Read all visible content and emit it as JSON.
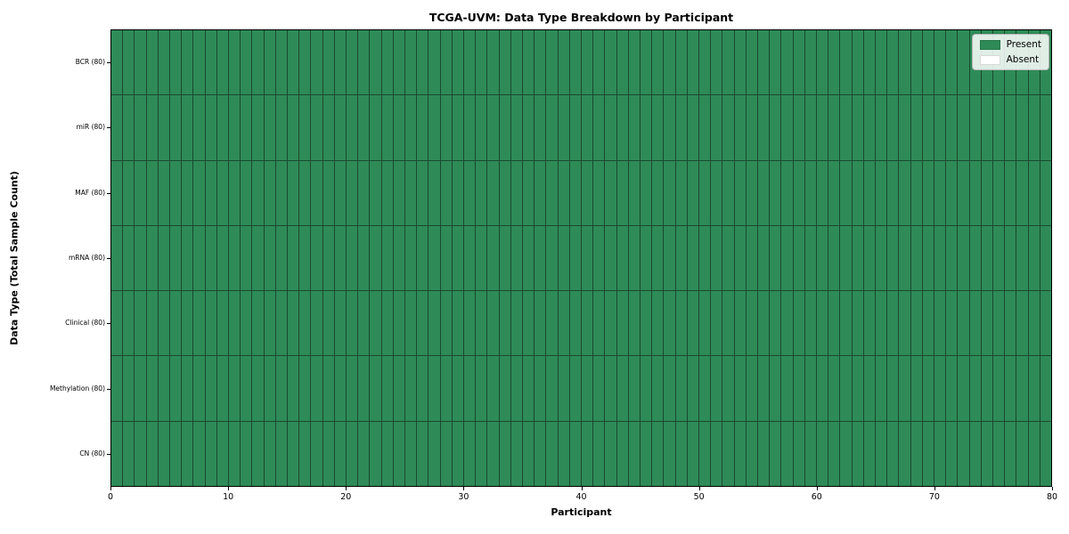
{
  "chart_data": {
    "type": "heatmap",
    "title": "TCGA-UVM: Data Type Breakdown by Participant",
    "xlabel": "Participant",
    "ylabel": "Data Type (Total Sample Count)",
    "xlim": [
      0,
      80
    ],
    "x_ticks": [
      0,
      10,
      20,
      30,
      40,
      50,
      60,
      70,
      80
    ],
    "n_participants": 80,
    "rows": [
      {
        "label": "BCR (80)",
        "data_type": "BCR",
        "total_samples": 80,
        "present_participants": 80,
        "absent_participants": 0
      },
      {
        "label": "miR (80)",
        "data_type": "miR",
        "total_samples": 80,
        "present_participants": 80,
        "absent_participants": 0
      },
      {
        "label": "MAF (80)",
        "data_type": "MAF",
        "total_samples": 80,
        "present_participants": 80,
        "absent_participants": 0
      },
      {
        "label": "mRNA (80)",
        "data_type": "mRNA",
        "total_samples": 80,
        "present_participants": 80,
        "absent_participants": 0
      },
      {
        "label": "Clinical (80)",
        "data_type": "Clinical",
        "total_samples": 80,
        "present_participants": 80,
        "absent_participants": 0
      },
      {
        "label": "Methylation (80)",
        "data_type": "Methylation",
        "total_samples": 80,
        "present_participants": 80,
        "absent_participants": 0
      },
      {
        "label": "CN (80)",
        "data_type": "CN",
        "total_samples": 80,
        "present_participants": 80,
        "absent_participants": 0
      }
    ],
    "legend": [
      {
        "label": "Present",
        "color": "#2e8b57"
      },
      {
        "label": "Absent",
        "color": "#ffffff"
      }
    ],
    "legend_position": "upper right",
    "grid": "cell borders on (thin dark lines)",
    "colors": {
      "present": "#2e8b57",
      "absent": "#ffffff",
      "cell_border": "#1a4930",
      "axis_spine": "#000000",
      "background": "#ffffff"
    }
  }
}
